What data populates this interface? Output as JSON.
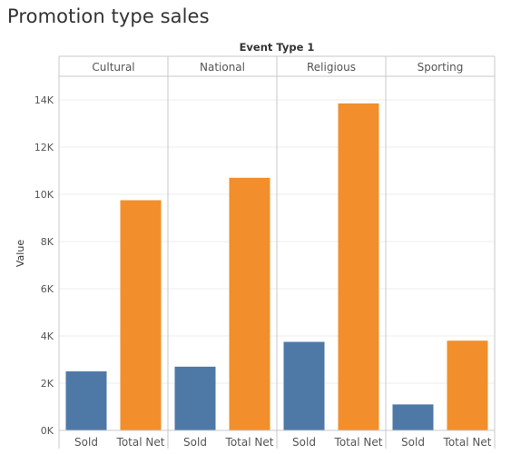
{
  "title": "Promotion type sales",
  "chart_data": {
    "type": "bar",
    "title": "Promotion type sales",
    "ylabel": "Value",
    "column_header": "Event Type 1",
    "ylim": [
      0,
      15000
    ],
    "y_ticks": [
      0,
      2000,
      4000,
      6000,
      8000,
      10000,
      12000,
      14000
    ],
    "y_tick_labels": [
      "0K",
      "2K",
      "4K",
      "6K",
      "8K",
      "10K",
      "12K",
      "14K"
    ],
    "panels": [
      "Cultural",
      "National",
      "Religious",
      "Sporting"
    ],
    "categories": [
      "Sold",
      "Total Net"
    ],
    "colors": {
      "Sold": "#4e79a7",
      "Total Net": "#f28e2b"
    },
    "values": [
      [
        2500,
        9750
      ],
      [
        2700,
        10700
      ],
      [
        3750,
        13850
      ],
      [
        1100,
        3800
      ]
    ],
    "grid": true
  }
}
